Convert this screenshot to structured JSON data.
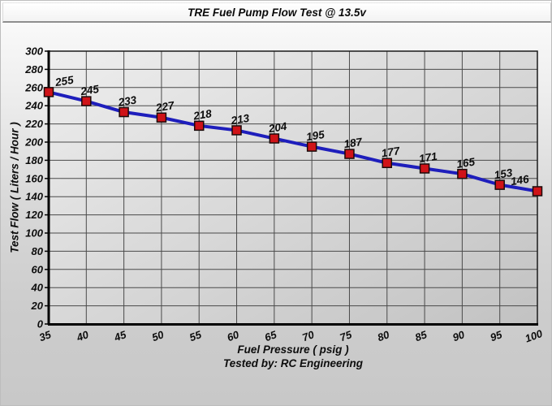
{
  "title_bar": {
    "title": "TRE Fuel Pump Flow Test @ 13.5v"
  },
  "axes": {
    "y_title": "Test Flow ( Liters / Hour )",
    "x_title": "Fuel Pressure ( psig )"
  },
  "footer": {
    "tested_by": "Tested by: RC Engineering"
  },
  "chart_data": {
    "type": "line",
    "title": "TRE Fuel Pump Flow Test @ 13.5v",
    "xlabel": "Fuel Pressure ( psig )",
    "ylabel": "Test Flow ( Liters / Hour )",
    "x": [
      35,
      40,
      45,
      50,
      55,
      60,
      65,
      70,
      75,
      80,
      85,
      90,
      95,
      100
    ],
    "values": [
      255,
      245,
      233,
      227,
      218,
      213,
      204,
      195,
      187,
      177,
      171,
      165,
      153,
      146
    ],
    "data_labels_visible": true,
    "xlim": [
      35,
      100
    ],
    "ylim": [
      0,
      300
    ],
    "x_tick_step": 5,
    "y_tick_step": 20,
    "grid": true,
    "legend": "none",
    "marker": "square",
    "colors": {
      "line": "#1e1ebc",
      "marker_fill": "#cf1318",
      "marker_stroke": "#1b0b0b",
      "grid": "#4a4a4a",
      "axis": "#000000",
      "border": "#1a1a1a",
      "plot_bg_start": "#eeeeee",
      "plot_bg_end": "#c2c2c2",
      "text": "#0d0d0d"
    }
  }
}
